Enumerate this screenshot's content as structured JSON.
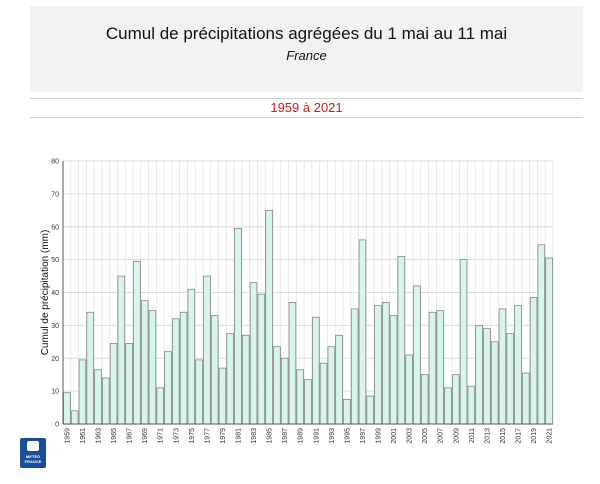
{
  "header": {
    "title": "Cumul de précipitations agrégées du 1 mai au 11 mai",
    "subtitle": "France",
    "period": "1959 à 2021"
  },
  "logo": {
    "line1": "METEO",
    "line2": "FRANCE"
  },
  "chart_data": {
    "type": "bar",
    "ylabel": "Cumul de précipitation (mm)",
    "ylim": [
      0,
      80
    ],
    "yticks": [
      0,
      10,
      20,
      30,
      40,
      50,
      60,
      70,
      80
    ],
    "x": [
      1959,
      1960,
      1961,
      1962,
      1963,
      1964,
      1965,
      1966,
      1967,
      1968,
      1969,
      1970,
      1971,
      1972,
      1973,
      1974,
      1975,
      1976,
      1977,
      1978,
      1979,
      1980,
      1981,
      1982,
      1983,
      1984,
      1985,
      1986,
      1987,
      1988,
      1989,
      1990,
      1991,
      1992,
      1993,
      1994,
      1995,
      1996,
      1997,
      1998,
      1999,
      2000,
      2001,
      2002,
      2003,
      2004,
      2005,
      2006,
      2007,
      2008,
      2009,
      2010,
      2011,
      2012,
      2013,
      2014,
      2015,
      2016,
      2017,
      2018,
      2019,
      2020,
      2021
    ],
    "xtick_labels": [
      "1959",
      "1961",
      "1963",
      "1965",
      "1967",
      "1969",
      "1971",
      "1973",
      "1975",
      "1977",
      "1979",
      "1981",
      "1983",
      "1985",
      "1987",
      "1989",
      "1991",
      "1993",
      "1995",
      "1997",
      "1999",
      "2001",
      "2003",
      "2005",
      "2007",
      "2009",
      "2011",
      "2013",
      "2015",
      "2017",
      "2019",
      "2021"
    ],
    "values": [
      9.5,
      4,
      19.5,
      34,
      16.5,
      14,
      24.5,
      45,
      24.5,
      49.5,
      37.5,
      34.5,
      11,
      22,
      32,
      34,
      41,
      19.5,
      45,
      33,
      17,
      27.5,
      59.5,
      27,
      43,
      39.5,
      65,
      23.5,
      20,
      37,
      16.5,
      13.5,
      32.5,
      18.5,
      23.5,
      27,
      7.5,
      35,
      56,
      8.5,
      36,
      37,
      33,
      51,
      21,
      42,
      15,
      34,
      34.5,
      11,
      15,
      50,
      11.5,
      30,
      29,
      25,
      35,
      27.5,
      36,
      15.5,
      38.5,
      54.5,
      50.5
    ],
    "grid": true,
    "colors": {
      "bar_fill": "#d8f5ea",
      "bar_stroke": "#777777",
      "grid": "#dcdcdc",
      "axis": "#555555"
    }
  }
}
